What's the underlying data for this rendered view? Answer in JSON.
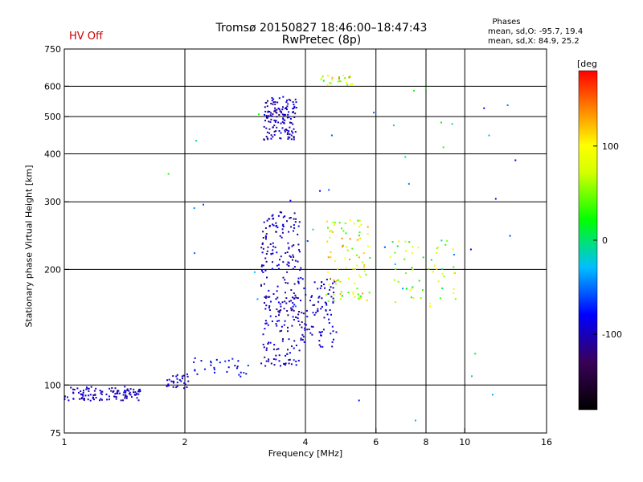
{
  "chart_data": {
    "type": "scatter",
    "title": "Tromsø 20150827 18:46:00–18:47:43",
    "subtitle": "RwPretec (8p)",
    "status_label": "HV Off",
    "xlabel": "Frequency [MHz]",
    "ylabel": "Stationary phase Virtual Height [km]",
    "x_scale": "log",
    "y_scale": "log",
    "xlim": [
      1,
      16
    ],
    "ylim": [
      75,
      750
    ],
    "x_ticks": [
      1,
      2,
      4,
      6,
      8,
      10,
      16
    ],
    "x_tick_labels": [
      "1",
      "2",
      "4",
      "6",
      "8",
      "10",
      "16"
    ],
    "x_gridlines": [
      2,
      4,
      6,
      8,
      10
    ],
    "y_ticks": [
      75,
      100,
      200,
      300,
      400,
      500,
      600,
      750
    ],
    "y_tick_labels": [
      "75",
      "100",
      "200",
      "300",
      "400",
      "500",
      "600",
      "750"
    ],
    "y_gridlines": [
      100,
      200,
      300,
      400,
      500,
      600
    ],
    "phases": {
      "title": "Phases",
      "line_o": "mean, sd,O: -95.7, 19.4",
      "line_x": "mean, sd,X:  84.9, 25.2"
    },
    "colorbar": {
      "unit_label": "[deg",
      "range": [
        -180,
        180
      ],
      "ticks": [
        100,
        0,
        -100
      ],
      "tick_labels": [
        "100",
        "0",
        "-100"
      ]
    },
    "clusters": [
      {
        "x_range": [
          1.0,
          1.55
        ],
        "y_range": [
          91,
          99
        ],
        "n": 120,
        "phase": -100
      },
      {
        "x_range": [
          1.8,
          2.05
        ],
        "y_range": [
          98,
          107
        ],
        "n": 30,
        "phase": -95
      },
      {
        "x_range": [
          2.1,
          2.9
        ],
        "y_range": [
          105,
          118
        ],
        "n": 30,
        "phase": -80
      },
      {
        "x_range": [
          3.15,
          3.8
        ],
        "y_range": [
          435,
          560
        ],
        "n": 140,
        "phase": -100
      },
      {
        "x_range": [
          3.1,
          3.9
        ],
        "y_range": [
          112,
          285
        ],
        "n": 260,
        "phase": -100
      },
      {
        "x_range": [
          3.9,
          4.8
        ],
        "y_range": [
          125,
          190
        ],
        "n": 90,
        "phase": -95
      },
      {
        "x_range": [
          4.5,
          5.8
        ],
        "y_range": [
          165,
          270
        ],
        "n": 90,
        "phase": 80
      },
      {
        "x_range": [
          6.5,
          9.5
        ],
        "y_range": [
          160,
          240
        ],
        "n": 55,
        "phase": 50
      },
      {
        "x_range": [
          4.3,
          5.3
        ],
        "y_range": [
          600,
          640
        ],
        "n": 25,
        "phase": 90
      },
      {
        "x_range": [
          1.7,
          14
        ],
        "y_range": [
          78,
          650
        ],
        "n": 45,
        "phase": -30
      }
    ]
  }
}
